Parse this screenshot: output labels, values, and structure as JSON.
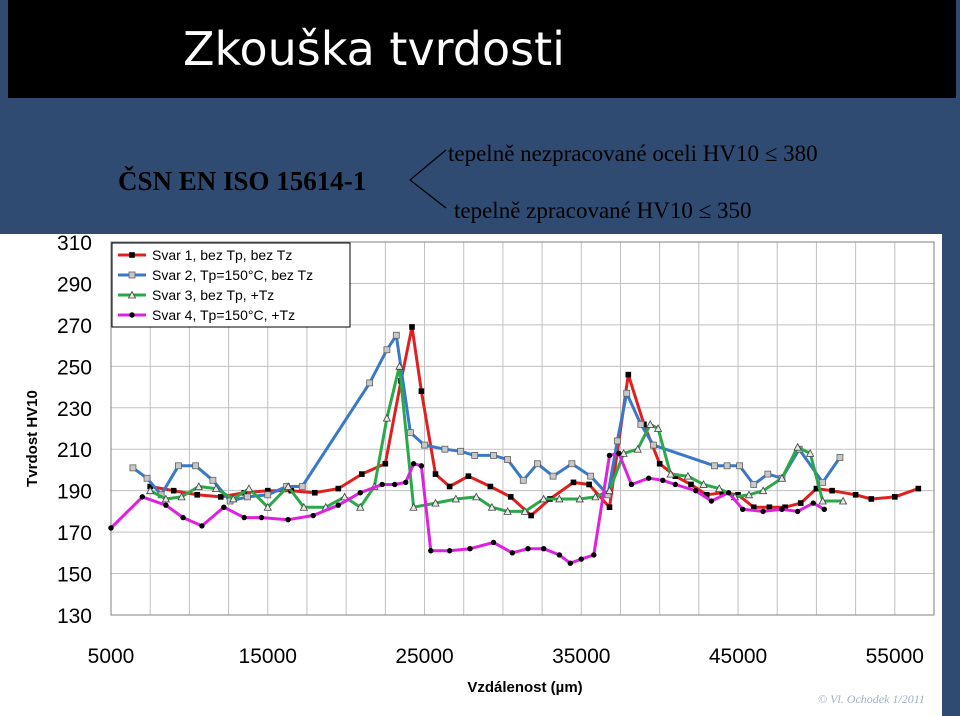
{
  "slide": {
    "title": "Zkouška tvrdosti",
    "standard": "ČSN EN ISO 15614-1",
    "requirement_1": "tepelně nezpracované oceli HV10 ≤ 380",
    "requirement_2": "tepelně zpracované HV10 ≤ 350",
    "copyright": "© Vl. Ochodek 1/2011"
  },
  "colors": {
    "background": "#2f4b72",
    "title_bar": "#000000",
    "grid": "#c0c0c0"
  },
  "chart_data": {
    "type": "line",
    "title": "",
    "xlabel": "Vzdálenost (µm)",
    "ylabel": "Tvrdost HV10",
    "xlim": [
      5000,
      57500
    ],
    "ylim": [
      130,
      310
    ],
    "x_ticks": [
      5000,
      15000,
      25000,
      35000,
      45000,
      55000
    ],
    "y_ticks": [
      130,
      150,
      170,
      190,
      210,
      230,
      250,
      270,
      290,
      310
    ],
    "grid": true,
    "legend_position": "top-left",
    "series": [
      {
        "name": "Svar 1, bez Tp, bez Tz",
        "color": "#e02020",
        "marker": "square",
        "points": [
          [
            7500,
            192
          ],
          [
            9000,
            190
          ],
          [
            10500,
            188
          ],
          [
            12000,
            187
          ],
          [
            13500,
            189
          ],
          [
            15000,
            190
          ],
          [
            16500,
            190
          ],
          [
            18000,
            189
          ],
          [
            19500,
            191
          ],
          [
            21000,
            198
          ],
          [
            22500,
            203
          ],
          [
            23500,
            243
          ],
          [
            24200,
            269
          ],
          [
            24800,
            238
          ],
          [
            25700,
            198
          ],
          [
            26600,
            192
          ],
          [
            27800,
            197
          ],
          [
            29200,
            192
          ],
          [
            30500,
            187
          ],
          [
            31800,
            178
          ],
          [
            33000,
            186
          ],
          [
            34500,
            194
          ],
          [
            35500,
            193
          ],
          [
            36800,
            182
          ],
          [
            38000,
            246
          ],
          [
            39000,
            222
          ],
          [
            40000,
            203
          ],
          [
            41000,
            197
          ],
          [
            42000,
            193
          ],
          [
            43000,
            188
          ],
          [
            44000,
            189
          ],
          [
            45000,
            188
          ],
          [
            46000,
            182
          ],
          [
            47000,
            182
          ],
          [
            48000,
            182
          ],
          [
            49000,
            184
          ],
          [
            50000,
            191
          ],
          [
            51000,
            190
          ],
          [
            52500,
            188
          ],
          [
            53500,
            186
          ],
          [
            55000,
            187
          ],
          [
            56500,
            191
          ]
        ]
      },
      {
        "name": "Svar 2, Tp=150°C, bez Tz",
        "color": "#3a78c8",
        "marker": "square",
        "points": [
          [
            6400,
            201
          ],
          [
            7300,
            196
          ],
          [
            8200,
            188
          ],
          [
            9300,
            202
          ],
          [
            10400,
            202
          ],
          [
            11500,
            195
          ],
          [
            12600,
            185
          ],
          [
            13700,
            187
          ],
          [
            15000,
            188
          ],
          [
            16200,
            192
          ],
          [
            17200,
            192
          ],
          [
            21500,
            242
          ],
          [
            22600,
            258
          ],
          [
            23200,
            265
          ],
          [
            24100,
            218
          ],
          [
            25000,
            212
          ],
          [
            26300,
            210
          ],
          [
            27300,
            209
          ],
          [
            28200,
            207
          ],
          [
            29400,
            207
          ],
          [
            30300,
            205
          ],
          [
            31300,
            195
          ],
          [
            32200,
            203
          ],
          [
            33200,
            197
          ],
          [
            34400,
            203
          ],
          [
            35600,
            197
          ],
          [
            36700,
            188
          ],
          [
            37300,
            214
          ],
          [
            37900,
            237
          ],
          [
            38800,
            222
          ],
          [
            39600,
            212
          ],
          [
            43500,
            202
          ],
          [
            44300,
            202
          ],
          [
            45100,
            202
          ],
          [
            46000,
            193
          ],
          [
            46900,
            198
          ],
          [
            47800,
            196
          ],
          [
            48900,
            210
          ],
          [
            50400,
            194
          ],
          [
            51500,
            206
          ]
        ]
      },
      {
        "name": "Svar 3, bez Tp, +Tz",
        "color": "#2aa84a",
        "marker": "triangle",
        "points": [
          [
            7500,
            190
          ],
          [
            8500,
            186
          ],
          [
            9500,
            187
          ],
          [
            10600,
            192
          ],
          [
            11700,
            191
          ],
          [
            12800,
            186
          ],
          [
            13800,
            191
          ],
          [
            15000,
            182
          ],
          [
            16300,
            192
          ],
          [
            17300,
            182
          ],
          [
            18700,
            182
          ],
          [
            19900,
            187
          ],
          [
            20900,
            182
          ],
          [
            21800,
            192
          ],
          [
            22600,
            225
          ],
          [
            23400,
            250
          ],
          [
            24300,
            182
          ],
          [
            25700,
            184
          ],
          [
            27000,
            186
          ],
          [
            28300,
            187
          ],
          [
            29300,
            182
          ],
          [
            30300,
            180
          ],
          [
            31400,
            180
          ],
          [
            32600,
            186
          ],
          [
            33600,
            186
          ],
          [
            34900,
            186
          ],
          [
            35900,
            187
          ],
          [
            36800,
            190
          ],
          [
            37700,
            208
          ],
          [
            38600,
            210
          ],
          [
            39400,
            222
          ],
          [
            39900,
            220
          ],
          [
            40700,
            198
          ],
          [
            41800,
            197
          ],
          [
            42800,
            193
          ],
          [
            43800,
            191
          ],
          [
            44800,
            187
          ],
          [
            45700,
            188
          ],
          [
            46600,
            190
          ],
          [
            47800,
            196
          ],
          [
            48800,
            211
          ],
          [
            49600,
            208
          ],
          [
            50400,
            185
          ],
          [
            51700,
            185
          ]
        ]
      },
      {
        "name": "Svar 4, Tp=150°C, +Tz",
        "color": "#e020e0",
        "marker": "circle",
        "points": [
          [
            5000,
            172
          ],
          [
            7000,
            187
          ],
          [
            8500,
            183
          ],
          [
            9600,
            177
          ],
          [
            10800,
            173
          ],
          [
            12200,
            182
          ],
          [
            13500,
            177
          ],
          [
            14600,
            177
          ],
          [
            16300,
            176
          ],
          [
            17900,
            178
          ],
          [
            19500,
            183
          ],
          [
            20900,
            189
          ],
          [
            22300,
            193
          ],
          [
            23100,
            193
          ],
          [
            23800,
            194
          ],
          [
            24300,
            203
          ],
          [
            24800,
            202
          ],
          [
            25400,
            161
          ],
          [
            26600,
            161
          ],
          [
            27900,
            162
          ],
          [
            29400,
            165
          ],
          [
            30600,
            160
          ],
          [
            31600,
            162
          ],
          [
            32600,
            162
          ],
          [
            33600,
            159
          ],
          [
            34300,
            155
          ],
          [
            35000,
            157
          ],
          [
            35800,
            159
          ],
          [
            36800,
            207
          ],
          [
            37400,
            208
          ],
          [
            38200,
            193
          ],
          [
            39300,
            196
          ],
          [
            40200,
            195
          ],
          [
            41000,
            193
          ],
          [
            42300,
            190
          ],
          [
            43300,
            185
          ],
          [
            44400,
            189
          ],
          [
            45300,
            181
          ],
          [
            46600,
            180
          ],
          [
            47800,
            181
          ],
          [
            48800,
            180
          ],
          [
            49800,
            184
          ],
          [
            50500,
            181
          ]
        ]
      }
    ]
  }
}
